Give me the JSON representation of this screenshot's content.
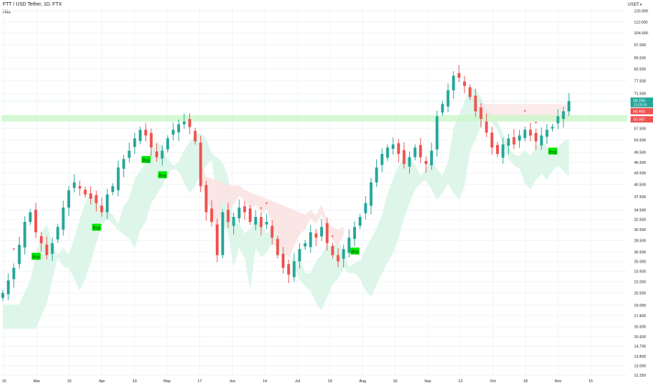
{
  "header": {
    "symbol_line": "FTT / USD Tether, 1D, FTX",
    "indicator_name": "i4ts",
    "currency": "USDT"
  },
  "price_tags": {
    "last_price": "68.256",
    "countdown": "13:00:45",
    "upper_level": "66.465",
    "lower_level": "60.987"
  },
  "colors": {
    "bull": "#26a69a",
    "bear": "#ef5350",
    "buy_label": "#00e600",
    "cloud_bull": "#d8f5e6",
    "cloud_bear": "#fbe3e3",
    "zone": "#c9f7c9",
    "grid": "#f0f3fa",
    "axis_text": "#131722",
    "last_tag": "#26a69a",
    "level_tag": "#ef5350"
  },
  "chart_data": {
    "type": "candlestick",
    "title": "FTT / USD Tether, 1D, FTX",
    "y_scale": "log",
    "ylim": [
      12.25,
      123.0
    ],
    "y_ticks": [
      "120.000",
      "112.000",
      "104.500",
      "97.000",
      "89.500",
      "83.500",
      "77.500",
      "71.500",
      "57.500",
      "53.500",
      "49.500",
      "46.500",
      "43.500",
      "40.500",
      "37.500",
      "34.500",
      "32.500",
      "30.500",
      "28.500",
      "26.500",
      "25.000",
      "23.500",
      "22.000",
      "20.500",
      "19.000",
      "17.800",
      "16.600",
      "15.600",
      "14.700",
      "13.800",
      "13.000",
      "12.250"
    ],
    "x_ticks": [
      "15",
      "Mar",
      "15",
      "Apr",
      "19",
      "May",
      "17",
      "Jun",
      "14",
      "Jul",
      "19",
      "Aug",
      "16",
      "Sep",
      "13",
      "Oct",
      "18",
      "Nov",
      "15"
    ],
    "series_levels": [
      {
        "x": 0,
        "v": 20.5
      },
      {
        "x": 2,
        "v": 24
      },
      {
        "x": 4,
        "v": 32
      },
      {
        "x": 5,
        "v": 34
      },
      {
        "x": 6,
        "v": 30
      },
      {
        "x": 7,
        "v": 28
      },
      {
        "x": 8,
        "v": 26
      },
      {
        "x": 9,
        "v": 28
      },
      {
        "x": 10,
        "v": 31
      },
      {
        "x": 11,
        "v": 35
      },
      {
        "x": 12,
        "v": 39
      },
      {
        "x": 13,
        "v": 41
      },
      {
        "x": 15,
        "v": 38
      },
      {
        "x": 17,
        "v": 36
      },
      {
        "x": 18,
        "v": 34
      },
      {
        "x": 19,
        "v": 38
      },
      {
        "x": 20,
        "v": 40
      },
      {
        "x": 21,
        "v": 45
      },
      {
        "x": 23,
        "v": 50
      },
      {
        "x": 24,
        "v": 54
      },
      {
        "x": 25,
        "v": 57
      },
      {
        "x": 26,
        "v": 55
      },
      {
        "x": 27,
        "v": 51
      },
      {
        "x": 28,
        "v": 48
      },
      {
        "x": 29,
        "v": 50
      },
      {
        "x": 30,
        "v": 54
      },
      {
        "x": 31,
        "v": 57
      },
      {
        "x": 32,
        "v": 59
      },
      {
        "x": 33,
        "v": 60
      },
      {
        "x": 34,
        "v": 58
      },
      {
        "x": 35,
        "v": 53
      },
      {
        "x": 36,
        "v": 40
      },
      {
        "x": 37,
        "v": 34
      },
      {
        "x": 38,
        "v": 32
      },
      {
        "x": 39,
        "v": 26
      },
      {
        "x": 40,
        "v": 34
      },
      {
        "x": 41,
        "v": 32
      },
      {
        "x": 42,
        "v": 33
      },
      {
        "x": 43,
        "v": 35
      },
      {
        "x": 44,
        "v": 34
      },
      {
        "x": 45,
        "v": 32
      },
      {
        "x": 46,
        "v": 33
      },
      {
        "x": 47,
        "v": 31
      },
      {
        "x": 48,
        "v": 32
      },
      {
        "x": 49,
        "v": 29
      },
      {
        "x": 50,
        "v": 26
      },
      {
        "x": 51,
        "v": 24
      },
      {
        "x": 52,
        "v": 23
      },
      {
        "x": 53,
        "v": 25
      },
      {
        "x": 54,
        "v": 27
      },
      {
        "x": 55,
        "v": 28
      },
      {
        "x": 56,
        "v": 30
      },
      {
        "x": 57,
        "v": 29
      },
      {
        "x": 58,
        "v": 31
      },
      {
        "x": 59,
        "v": 28
      },
      {
        "x": 60,
        "v": 26
      },
      {
        "x": 61,
        "v": 25
      },
      {
        "x": 62,
        "v": 27
      },
      {
        "x": 63,
        "v": 29
      },
      {
        "x": 64,
        "v": 31
      },
      {
        "x": 65,
        "v": 33
      },
      {
        "x": 66,
        "v": 36
      },
      {
        "x": 67,
        "v": 41
      },
      {
        "x": 68,
        "v": 45
      },
      {
        "x": 69,
        "v": 49
      },
      {
        "x": 70,
        "v": 51
      },
      {
        "x": 71,
        "v": 52
      },
      {
        "x": 72,
        "v": 49
      },
      {
        "x": 73,
        "v": 46
      },
      {
        "x": 74,
        "v": 48
      },
      {
        "x": 75,
        "v": 51
      },
      {
        "x": 76,
        "v": 48
      },
      {
        "x": 77,
        "v": 46
      },
      {
        "x": 78,
        "v": 50
      },
      {
        "x": 79,
        "v": 62
      },
      {
        "x": 80,
        "v": 67
      },
      {
        "x": 81,
        "v": 73
      },
      {
        "x": 82,
        "v": 80
      },
      {
        "x": 83,
        "v": 79
      },
      {
        "x": 84,
        "v": 75
      },
      {
        "x": 85,
        "v": 70
      },
      {
        "x": 86,
        "v": 64
      },
      {
        "x": 87,
        "v": 61
      },
      {
        "x": 88,
        "v": 56
      },
      {
        "x": 89,
        "v": 51
      },
      {
        "x": 90,
        "v": 49
      },
      {
        "x": 91,
        "v": 52
      },
      {
        "x": 92,
        "v": 54
      },
      {
        "x": 93,
        "v": 52
      },
      {
        "x": 94,
        "v": 55
      },
      {
        "x": 95,
        "v": 57
      },
      {
        "x": 96,
        "v": 55
      },
      {
        "x": 97,
        "v": 53
      },
      {
        "x": 98,
        "v": 55
      },
      {
        "x": 99,
        "v": 57
      },
      {
        "x": 100,
        "v": 58
      },
      {
        "x": 101,
        "v": 62
      },
      {
        "x": 102,
        "v": 64
      },
      {
        "x": 103,
        "v": 68.256
      }
    ],
    "signals": [
      {
        "label": "Buy",
        "x": 6
      },
      {
        "label": "Buy",
        "x": 17
      },
      {
        "label": "Buy",
        "x": 26
      },
      {
        "label": "Buy",
        "x": 29
      },
      {
        "label": "Buy",
        "x": 64
      },
      {
        "label": "Buy",
        "x": 100
      }
    ],
    "sell_markers": [
      2,
      36,
      47,
      48,
      60,
      95,
      97
    ],
    "horizontal_zone": [
      60.0,
      62.5
    ]
  }
}
